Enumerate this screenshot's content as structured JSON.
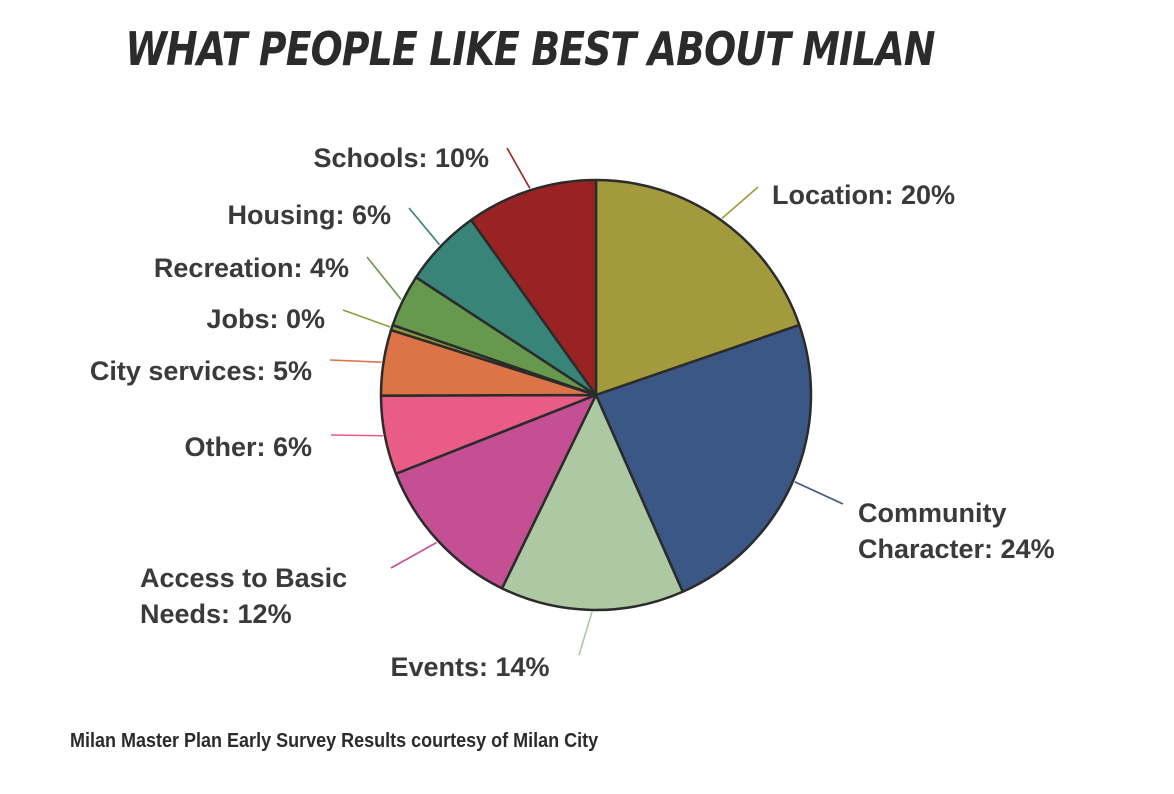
{
  "chart_data": {
    "type": "pie",
    "title": "WHAT PEOPLE LIKE BEST ABOUT MILAN",
    "slices": [
      {
        "name": "Location",
        "value": 20,
        "label": "Location: 20%",
        "color": "#a39a3e"
      },
      {
        "name": "Community Character",
        "value": 24,
        "label_lines": [
          "Community",
          "Character: 24%"
        ],
        "color": "#3b5785"
      },
      {
        "name": "Events",
        "value": 14,
        "label": "Events: 14%",
        "color": "#adc8a3"
      },
      {
        "name": "Access to Basic Needs",
        "value": 12,
        "label_lines": [
          "Access to Basic",
          "Needs: 12%"
        ],
        "color": "#c44f92"
      },
      {
        "name": "Other",
        "value": 6,
        "label": "Other: 6%",
        "color": "#e85c87"
      },
      {
        "name": "City services",
        "value": 5,
        "label": "City services: 5%",
        "color": "#dc7448"
      },
      {
        "name": "Jobs",
        "value": 0.4,
        "label": "Jobs: 0%",
        "color": "#8f9b3a"
      },
      {
        "name": "Recreation",
        "value": 4,
        "label": "Recreation: 4%",
        "color": "#66994e"
      },
      {
        "name": "Housing",
        "value": 6,
        "label": "Housing: 6%",
        "color": "#388478"
      },
      {
        "name": "Schools",
        "value": 10,
        "label": "Schools: 10%",
        "color": "#992323"
      }
    ],
    "footnote": "Milan Master Plan Early Survey Results courtesy of Milan City"
  }
}
